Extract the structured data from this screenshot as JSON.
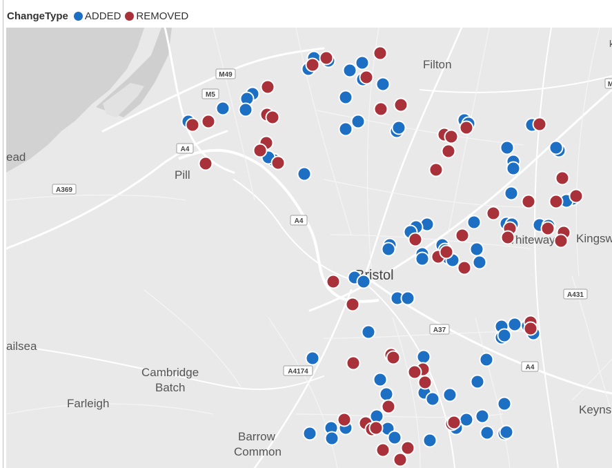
{
  "legend": {
    "title": "ChangeType",
    "items": [
      {
        "label": "ADDED",
        "color": "#1c6fc2"
      },
      {
        "label": "REMOVED",
        "color": "#a8313a"
      }
    ]
  },
  "map": {
    "places": [
      {
        "name": "Filton",
        "key": "filton"
      },
      {
        "name": "ead",
        "key": "ead"
      },
      {
        "name": "Pill",
        "key": "pill"
      },
      {
        "name": "Whiteway",
        "key": "whiteway"
      },
      {
        "name": "Kingsw",
        "key": "kingsw"
      },
      {
        "name": "Bristol",
        "key": "bristol"
      },
      {
        "name": "ailsea",
        "key": "ailsea"
      },
      {
        "name": "Cambridge",
        "key": "cambridge"
      },
      {
        "name": "Batch",
        "key": "batch"
      },
      {
        "name": "Farleigh",
        "key": "farleigh"
      },
      {
        "name": "Keynsh",
        "key": "keynsh"
      },
      {
        "name": "Barrow",
        "key": "barrow"
      },
      {
        "name": "Common",
        "key": "common"
      }
    ],
    "road_labels": [
      {
        "name": "M49",
        "key": "m49"
      },
      {
        "name": "M5",
        "key": "m5"
      },
      {
        "name": "A4",
        "key": "a4-west"
      },
      {
        "name": "A369",
        "key": "a369"
      },
      {
        "name": "A4",
        "key": "a4-center"
      },
      {
        "name": "A431",
        "key": "a431"
      },
      {
        "name": "A37",
        "key": "a37"
      },
      {
        "name": "A4174",
        "key": "a4174"
      },
      {
        "name": "A4",
        "key": "a4-east"
      },
      {
        "name": "M",
        "key": "m-edge"
      }
    ]
  },
  "markers": {
    "added_color": "#1c6fc2",
    "removed_color": "#a8313a",
    "added_count": 95,
    "removed_count": 60
  }
}
